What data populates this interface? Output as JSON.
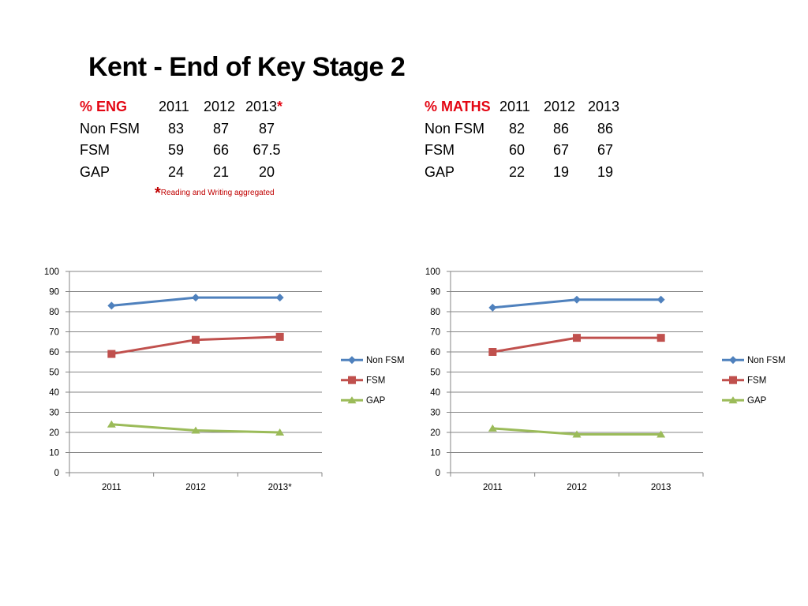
{
  "title": "Kent - End of Key Stage 2",
  "colors": {
    "accent_red": "#e30613",
    "non_fsm": "#4f81bd",
    "fsm": "#c0504d",
    "gap": "#9bbb59",
    "grid": "#868686"
  },
  "eng_table": {
    "header": {
      "label": "% ENG",
      "y2011": "2011",
      "y2012": "2012",
      "y2013": "2013",
      "asterisk": "*"
    },
    "rows": [
      {
        "label": "Non FSM",
        "v2011": "83",
        "v2012": "87",
        "v2013": "87"
      },
      {
        "label": "FSM",
        "v2011": "59",
        "v2012": "66",
        "v2013": "67.5"
      },
      {
        "label": "GAP",
        "v2011": "24",
        "v2012": "21",
        "v2013": "20"
      }
    ],
    "note": {
      "star": "*",
      "text": "Reading and Writing aggregated"
    }
  },
  "maths_table": {
    "header": {
      "label": "% MATHS",
      "y2011": "2011",
      "y2012": "2012",
      "y2013": "2013"
    },
    "rows": [
      {
        "label": "Non FSM",
        "v2011": "82",
        "v2012": "86",
        "v2013": "86"
      },
      {
        "label": "FSM",
        "v2011": "60",
        "v2012": "67",
        "v2013": "67"
      },
      {
        "label": "GAP",
        "v2011": "22",
        "v2012": "19",
        "v2013": "19"
      }
    ]
  },
  "chart_data": [
    {
      "type": "line",
      "categories": [
        "2011",
        "2012",
        "2013*"
      ],
      "ylim": [
        0,
        100
      ],
      "yticks": [
        0,
        10,
        20,
        30,
        40,
        50,
        60,
        70,
        80,
        90,
        100
      ],
      "grid": true,
      "legend": "right",
      "series": [
        {
          "name": "Non FSM",
          "values": [
            83,
            87,
            87
          ],
          "color": "#4f81bd",
          "marker": "diamond"
        },
        {
          "name": "FSM",
          "values": [
            59,
            66,
            67.5
          ],
          "color": "#c0504d",
          "marker": "square"
        },
        {
          "name": "GAP",
          "values": [
            24,
            21,
            20
          ],
          "color": "#9bbb59",
          "marker": "triangle"
        }
      ]
    },
    {
      "type": "line",
      "categories": [
        "2011",
        "2012",
        "2013"
      ],
      "ylim": [
        0,
        100
      ],
      "yticks": [
        0,
        10,
        20,
        30,
        40,
        50,
        60,
        70,
        80,
        90,
        100
      ],
      "grid": true,
      "legend": "right",
      "series": [
        {
          "name": "Non FSM",
          "values": [
            82,
            86,
            86
          ],
          "color": "#4f81bd",
          "marker": "diamond"
        },
        {
          "name": "FSM",
          "values": [
            60,
            67,
            67
          ],
          "color": "#c0504d",
          "marker": "square"
        },
        {
          "name": "GAP",
          "values": [
            22,
            19,
            19
          ],
          "color": "#9bbb59",
          "marker": "triangle"
        }
      ]
    }
  ]
}
